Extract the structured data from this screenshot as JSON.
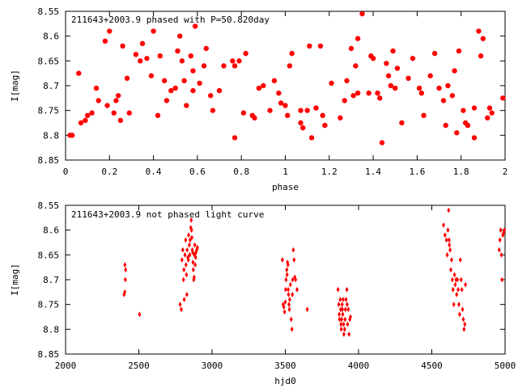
{
  "chart_data": [
    {
      "type": "scatter",
      "title": "211643+2003.9 phased with P=50.820day",
      "xlabel": "phase",
      "ylabel": "I[mag]",
      "xlim": [
        0,
        2
      ],
      "ylim": [
        8.85,
        8.55
      ],
      "y_inverted": true,
      "grid": false,
      "legend": "none",
      "marker": "filled-circle",
      "color": "#ff0000",
      "xticks": [
        "0",
        "0.2",
        "0.4",
        "0.6",
        "0.8",
        "1",
        "1.2",
        "1.4",
        "1.6",
        "1.8",
        "2"
      ],
      "yticks": [
        "8.55",
        "8.6",
        "8.65",
        "8.7",
        "8.75",
        "8.8",
        "8.85"
      ],
      "series": [
        {
          "x": [
            0.02,
            0.03,
            0.06,
            0.07,
            0.09,
            0.1,
            0.12,
            0.14,
            0.15,
            0.18,
            0.19,
            0.2,
            0.22,
            0.23,
            0.24,
            0.25,
            0.26,
            0.28,
            0.29,
            0.32,
            0.34,
            0.35,
            0.37,
            0.39,
            0.4,
            0.42,
            0.43,
            0.45,
            0.46,
            0.48,
            0.5,
            0.51,
            0.52,
            0.53,
            0.54,
            0.55,
            0.57,
            0.58,
            0.58,
            0.59,
            0.61,
            0.63,
            0.64,
            0.66,
            0.67,
            0.7,
            0.72,
            0.76,
            0.77,
            0.77,
            0.79,
            0.81,
            0.82,
            0.85,
            0.86,
            0.88,
            0.9,
            0.93,
            0.95,
            0.97,
            0.98,
            1.0,
            1.01,
            1.02,
            1.03,
            1.07,
            1.07,
            1.08,
            1.1,
            1.11,
            1.12,
            1.14,
            1.16,
            1.17,
            1.18,
            1.21,
            1.25,
            1.27,
            1.28,
            1.3,
            1.31,
            1.32,
            1.33,
            1.33,
            1.35,
            1.38,
            1.39,
            1.4,
            1.42,
            1.43,
            1.44,
            1.46,
            1.47,
            1.48,
            1.49,
            1.5,
            1.51,
            1.53,
            1.56,
            1.58,
            1.61,
            1.62,
            1.63,
            1.66,
            1.68,
            1.7,
            1.72,
            1.73,
            1.74,
            1.76,
            1.77,
            1.78,
            1.79,
            1.81,
            1.82,
            1.83,
            1.86,
            1.86,
            1.88,
            1.89,
            1.9,
            1.92,
            1.93,
            1.94,
            1.99
          ],
          "y": [
            8.8,
            8.8,
            8.675,
            8.775,
            8.77,
            8.76,
            8.755,
            8.705,
            8.73,
            8.61,
            8.74,
            8.59,
            8.755,
            8.73,
            8.72,
            8.77,
            8.62,
            8.685,
            8.755,
            8.637,
            8.65,
            8.615,
            8.645,
            8.68,
            8.59,
            8.76,
            8.64,
            8.69,
            8.73,
            8.71,
            8.705,
            8.63,
            8.6,
            8.65,
            8.69,
            8.74,
            8.64,
            8.71,
            8.67,
            8.58,
            8.695,
            8.66,
            8.625,
            8.72,
            8.75,
            8.71,
            8.66,
            8.65,
            8.66,
            8.805,
            8.65,
            8.755,
            8.635,
            8.76,
            8.765,
            8.705,
            8.7,
            8.75,
            8.69,
            8.715,
            8.735,
            8.74,
            8.76,
            8.66,
            8.635,
            8.75,
            8.775,
            8.785,
            8.75,
            8.62,
            8.805,
            8.745,
            8.62,
            8.76,
            8.78,
            8.695,
            8.765,
            8.73,
            8.69,
            8.625,
            8.72,
            8.66,
            8.605,
            8.715,
            8.555,
            8.715,
            8.64,
            8.645,
            8.715,
            8.725,
            8.815,
            8.655,
            8.68,
            8.7,
            8.63,
            8.705,
            8.665,
            8.775,
            8.685,
            8.645,
            8.705,
            8.715,
            8.76,
            8.68,
            8.635,
            8.705,
            8.73,
            8.78,
            8.7,
            8.72,
            8.67,
            8.795,
            8.63,
            8.75,
            8.775,
            8.78,
            8.805,
            8.745,
            8.59,
            8.64,
            8.605,
            8.765,
            8.745,
            8.755,
            8.725
          ]
        }
      ]
    },
    {
      "type": "scatter",
      "title": "211643+2003.9 not phased light curve",
      "xlabel": "hjd0",
      "ylabel": "I[mag]",
      "xlim": [
        2000,
        5000
      ],
      "ylim": [
        8.85,
        8.55
      ],
      "y_inverted": true,
      "grid": false,
      "legend": "none",
      "marker": "diamond",
      "color": "#ff0000",
      "xticks": [
        "2000",
        "2500",
        "3000",
        "3500",
        "4000",
        "4500",
        "5000"
      ],
      "yticks": [
        "8.55",
        "8.6",
        "8.65",
        "8.7",
        "8.75",
        "8.8",
        "8.85"
      ],
      "series": [
        {
          "x": [
            2400,
            2405,
            2410,
            2408,
            2404,
            2505,
            2782,
            2790,
            2795,
            2800,
            2805,
            2808,
            2810,
            2815,
            2820,
            2822,
            2825,
            2828,
            2830,
            2835,
            2838,
            2840,
            2845,
            2848,
            2850,
            2855,
            2858,
            2860,
            2862,
            2865,
            2868,
            2870,
            2872,
            2875,
            2878,
            2880,
            2882,
            2885,
            2888,
            2890,
            2895,
            2900,
            3480,
            3485,
            3490,
            3495,
            3500,
            3502,
            3505,
            3510,
            3512,
            3515,
            3518,
            3520,
            3522,
            3525,
            3528,
            3530,
            3535,
            3540,
            3545,
            3548,
            3550,
            3555,
            3560,
            3565,
            3570,
            3580,
            3650,
            3860,
            3865,
            3868,
            3870,
            3875,
            3878,
            3880,
            3882,
            3885,
            3888,
            3890,
            3892,
            3895,
            3898,
            3900,
            3905,
            3908,
            3910,
            3915,
            3920,
            3922,
            3925,
            3930,
            3935,
            3940,
            3945,
            4580,
            4590,
            4600,
            4605,
            4610,
            4615,
            4618,
            4620,
            4625,
            4630,
            4635,
            4640,
            4645,
            4650,
            4655,
            4660,
            4665,
            4670,
            4675,
            4680,
            4685,
            4690,
            4695,
            4700,
            4705,
            4710,
            4715,
            4720,
            4725,
            4730,
            4960,
            4965,
            4970,
            4975,
            4980,
            4985,
            4990,
            4995
          ],
          "y": [
            8.73,
            8.67,
            8.68,
            8.7,
            8.725,
            8.77,
            8.75,
            8.76,
            8.66,
            8.64,
            8.7,
            8.68,
            8.74,
            8.65,
            8.62,
            8.67,
            8.69,
            8.73,
            8.64,
            8.655,
            8.66,
            8.61,
            8.63,
            8.65,
            8.62,
            8.595,
            8.58,
            8.6,
            8.615,
            8.64,
            8.645,
            8.665,
            8.68,
            8.7,
            8.695,
            8.65,
            8.63,
            8.67,
            8.655,
            8.645,
            8.64,
            8.635,
            8.66,
            8.75,
            8.755,
            8.765,
            8.745,
            8.72,
            8.7,
            8.68,
            8.69,
            8.665,
            8.67,
            8.72,
            8.73,
            8.75,
            8.76,
            8.74,
            8.71,
            8.78,
            8.8,
            8.73,
            8.7,
            8.64,
            8.66,
            8.695,
            8.7,
            8.72,
            8.76,
            8.72,
            8.75,
            8.77,
            8.78,
            8.74,
            8.76,
            8.79,
            8.8,
            8.78,
            8.75,
            8.76,
            8.77,
            8.74,
            8.79,
            8.81,
            8.8,
            8.78,
            8.76,
            8.74,
            8.72,
            8.75,
            8.79,
            8.76,
            8.81,
            8.78,
            8.775,
            8.59,
            8.61,
            8.62,
            8.65,
            8.6,
            8.56,
            8.62,
            8.63,
            8.64,
            8.68,
            8.66,
            8.7,
            8.72,
            8.75,
            8.69,
            8.71,
            8.7,
            8.73,
            8.7,
            8.72,
            8.75,
            8.77,
            8.66,
            8.7,
            8.72,
            8.76,
            8.78,
            8.8,
            8.79,
            8.71,
            8.64,
            8.62,
            8.6,
            8.65,
            8.7,
            8.61,
            8.605,
            8.6
          ]
        }
      ]
    }
  ]
}
